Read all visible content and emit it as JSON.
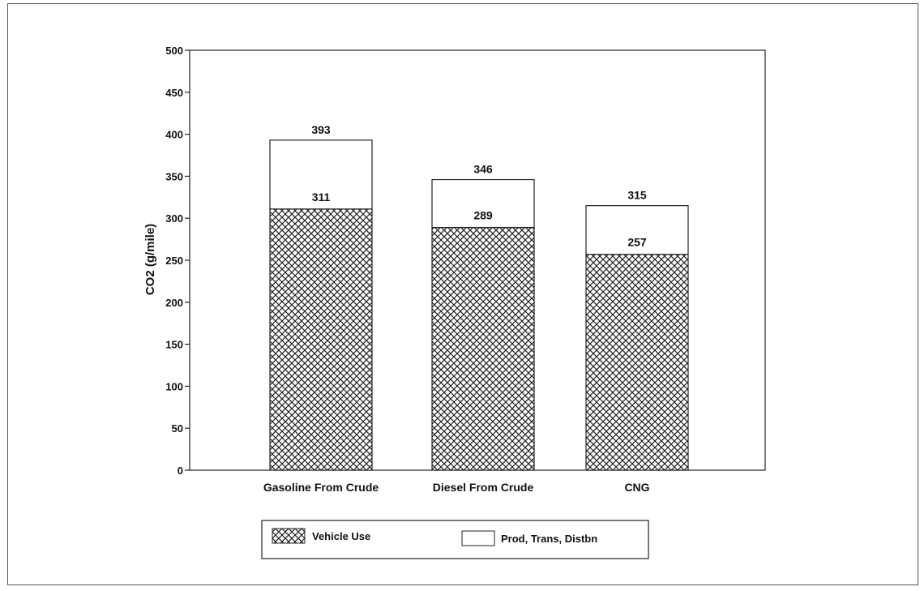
{
  "chart_data": {
    "type": "bar",
    "stacked": true,
    "title": "",
    "ylabel": "CO2 (g/mile)",
    "xlabel": "",
    "ylim": [
      0,
      500
    ],
    "yticks": [
      0,
      50,
      100,
      150,
      200,
      250,
      300,
      350,
      400,
      450,
      500
    ],
    "categories": [
      "Gasoline From Crude",
      "Diesel From Crude",
      "CNG"
    ],
    "series": [
      {
        "name": "Vehicle Use",
        "pattern": "crosshatch",
        "values": [
          311,
          289,
          257
        ]
      },
      {
        "name": "Prod, Trans, Distbn",
        "pattern": "none",
        "values": [
          82,
          57,
          58
        ]
      }
    ],
    "total_labels": [
      "393",
      "346",
      "315"
    ],
    "segment_labels": [
      "311",
      "289",
      "257"
    ],
    "legend": {
      "placement": "bottom"
    },
    "grid": false
  },
  "colors": {
    "ink": "#111111",
    "hatch": "#222222",
    "background": "#ffffff"
  }
}
